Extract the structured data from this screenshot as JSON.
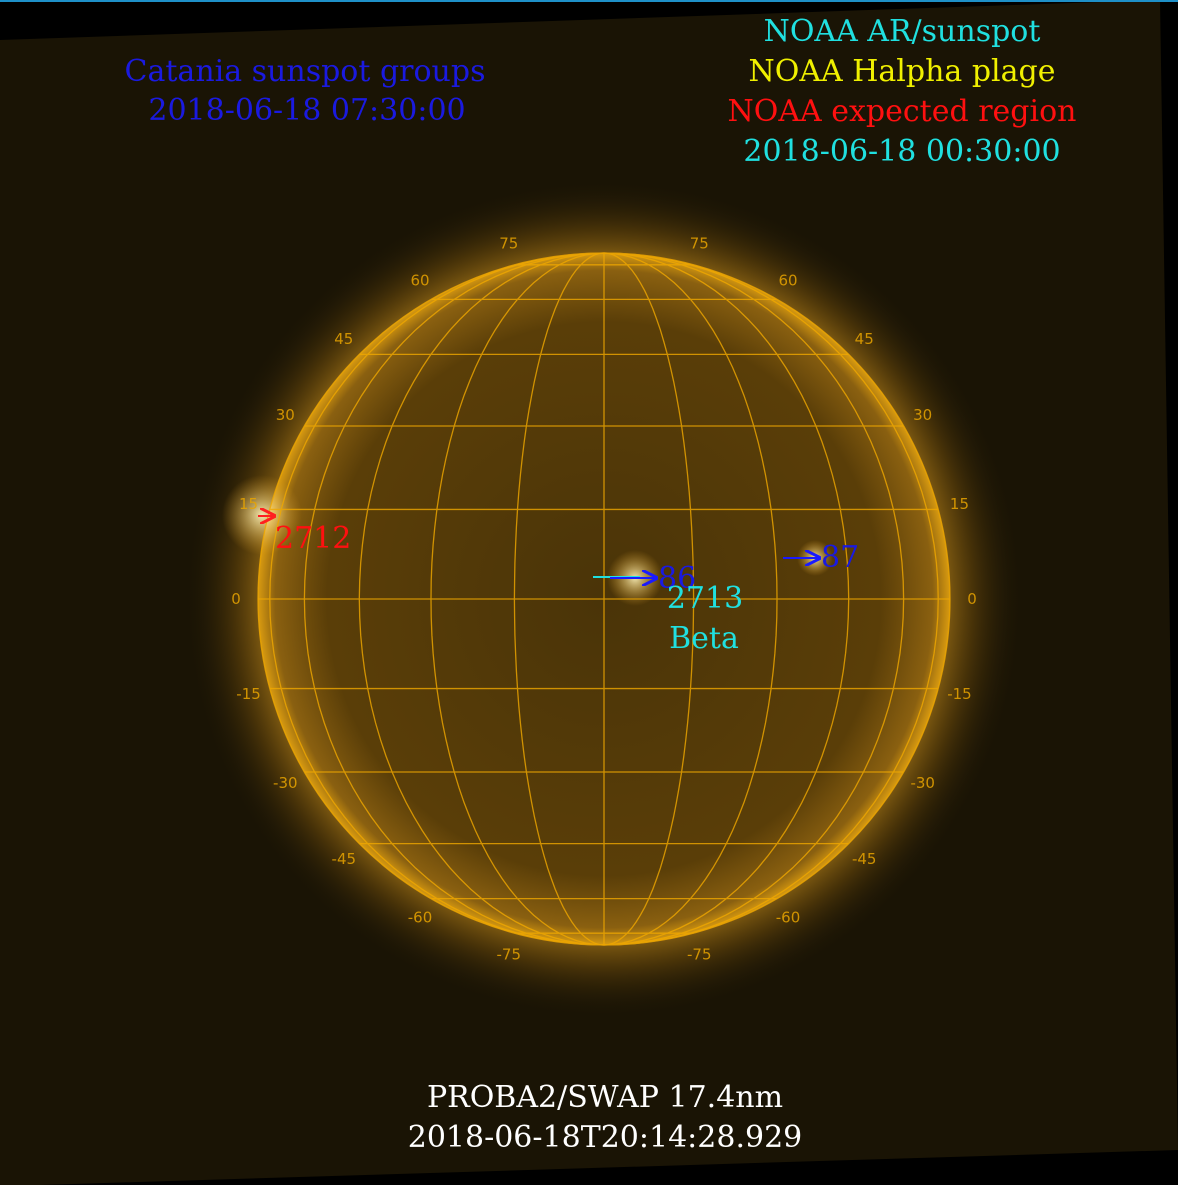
{
  "header_left": {
    "title": "Catania sunspot groups",
    "time": "2018-06-18 07:30:00"
  },
  "header_right": {
    "sunspot": "NOAA AR/sunspot",
    "plage": "NOAA Halpha plage",
    "expected": "NOAA expected region",
    "time": "2018-06-18 00:30:00"
  },
  "grid": {
    "latitudes": [
      75,
      60,
      45,
      30,
      15,
      0,
      -15,
      -30,
      -45,
      -60,
      -75
    ]
  },
  "regions": {
    "r2712": "2712",
    "r86": "86",
    "r87": "87",
    "r2713": "2713",
    "r2713_class": "Beta"
  },
  "footer": {
    "instrument": "PROBA2/SWAP 17.4nm",
    "time": "2018-06-18T20:14:28.929"
  }
}
